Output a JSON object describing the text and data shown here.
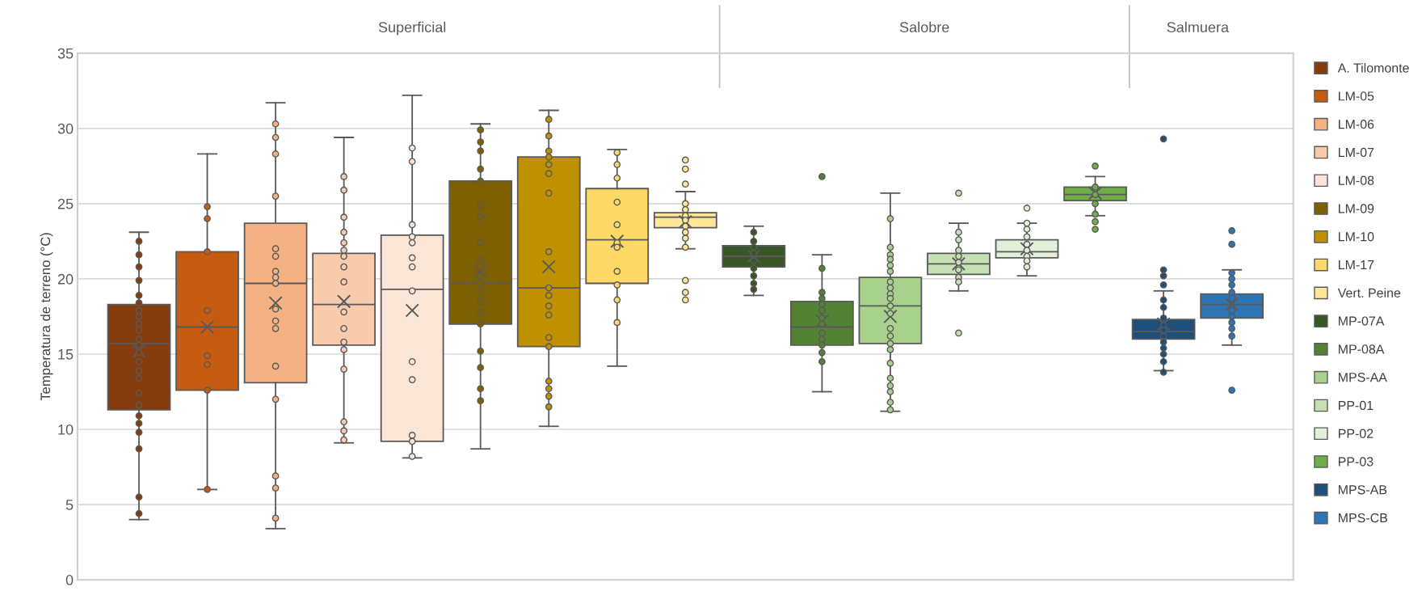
{
  "chart_data": {
    "type": "box",
    "ylabel": "Temperatura de terreno (°C)",
    "categories": [
      null
    ],
    "annotations": [
      "Superficial",
      "Salobre",
      "Salmuera"
    ],
    "ylim": [
      0,
      35
    ],
    "yticks": [
      0,
      5,
      10,
      15,
      20,
      25,
      30,
      35
    ],
    "grid": "y",
    "legend": "right",
    "marker": "circle",
    "tick_labels": "y",
    "series": [
      {
        "name": "A. Tilomonte",
        "color": "#843c0c",
        "boxes": [
          {
            "low": 4.0,
            "q1": 11.3,
            "median": 15.7,
            "q3": 18.3,
            "high": 23.1,
            "mean": 15.2,
            "outliers": [
              22.5,
              21.6,
              20.8,
              19.9,
              18.9,
              18.4,
              17.9,
              17.5,
              17.0,
              16.6,
              16.0,
              15.6,
              15.1,
              14.5,
              13.9,
              13.4,
              12.4,
              11.6,
              10.9,
              10.4,
              9.8,
              8.7,
              5.5,
              4.4
            ]
          }
        ]
      },
      {
        "name": "LM-05",
        "color": "#c55a11",
        "boxes": [
          {
            "low": 6.0,
            "q1": 12.6,
            "median": 16.8,
            "q3": 21.8,
            "high": 28.3,
            "mean": 16.8,
            "outliers": [
              24.8,
              24.0,
              21.8,
              17.9,
              14.9,
              14.3,
              12.6,
              6.0
            ]
          }
        ]
      },
      {
        "name": "LM-06",
        "color": "#f4b183",
        "boxes": [
          {
            "low": 3.4,
            "q1": 13.1,
            "median": 19.7,
            "q3": 23.7,
            "high": 31.7,
            "mean": 18.4,
            "outliers": [
              30.3,
              29.4,
              28.3,
              25.5,
              22.0,
              21.5,
              20.5,
              20.1,
              19.7,
              18.0,
              17.2,
              16.7,
              14.2,
              12.0,
              6.9,
              6.1,
              4.1
            ]
          }
        ]
      },
      {
        "name": "LM-07",
        "color": "#f8cbad",
        "boxes": [
          {
            "low": 9.1,
            "q1": 15.6,
            "median": 18.3,
            "q3": 21.7,
            "high": 29.4,
            "mean": 18.5,
            "outliers": [
              26.8,
              25.9,
              24.1,
              23.1,
              22.4,
              21.9,
              21.5,
              20.8,
              19.8,
              17.8,
              16.7,
              15.8,
              15.3,
              14.0,
              10.5,
              9.9,
              9.3
            ]
          }
        ]
      },
      {
        "name": "LM-08",
        "color": "#fbe5d6",
        "boxes": [
          {
            "low": 8.1,
            "q1": 9.2,
            "median": 19.3,
            "q3": 22.9,
            "high": 32.2,
            "mean": 17.9,
            "outliers": [
              28.7,
              27.8,
              23.6,
              22.8,
              22.4,
              21.4,
              20.8,
              19.2,
              14.5,
              13.3,
              9.6,
              9.2,
              8.2
            ]
          }
        ]
      },
      {
        "name": "LM-09",
        "color": "#7f6000",
        "boxes": [
          {
            "low": 8.7,
            "q1": 17.0,
            "median": 19.7,
            "q3": 26.5,
            "high": 30.3,
            "mean": 20.5,
            "outliers": [
              29.9,
              29.1,
              28.5,
              27.3,
              26.5,
              24.9,
              24.1,
              22.4,
              21.2,
              20.2,
              19.7,
              19.2,
              18.5,
              17.8,
              17.0,
              15.2,
              14.1,
              12.7,
              11.9
            ]
          }
        ]
      },
      {
        "name": "LM-10",
        "color": "#bf9000",
        "boxes": [
          {
            "low": 10.2,
            "q1": 15.5,
            "median": 19.4,
            "q3": 28.1,
            "high": 31.2,
            "mean": 20.8,
            "outliers": [
              30.6,
              29.5,
              28.5,
              28.1,
              27.6,
              27.0,
              25.7,
              21.8,
              19.4,
              18.9,
              18.2,
              17.6,
              16.1,
              15.5,
              13.2,
              12.7,
              12.2,
              11.5
            ]
          }
        ]
      },
      {
        "name": "LM-17",
        "color": "#ffd966",
        "boxes": [
          {
            "low": 14.2,
            "q1": 19.7,
            "median": 22.6,
            "q3": 26.0,
            "high": 28.6,
            "mean": 22.5,
            "outliers": [
              28.4,
              27.6,
              26.7,
              25.1,
              23.6,
              22.4,
              22.1,
              20.5,
              19.6,
              18.6,
              17.1
            ]
          }
        ]
      },
      {
        "name": "Vert. Peine",
        "color": "#ffe699",
        "boxes": [
          {
            "low": 22.0,
            "q1": 23.4,
            "median": 24.1,
            "q3": 24.4,
            "high": 25.8,
            "mean": 23.8,
            "outliers": [
              27.9,
              27.3,
              26.3,
              25.0,
              24.6,
              24.2,
              23.9,
              23.5,
              23.1,
              22.7,
              22.1,
              19.9,
              19.1,
              18.6
            ]
          }
        ]
      },
      {
        "name": "MP-07A",
        "color": "#375623",
        "boxes": [
          {
            "low": 18.9,
            "q1": 20.8,
            "median": 21.5,
            "q3": 22.2,
            "high": 23.5,
            "mean": 21.5,
            "outliers": [
              23.1,
              22.5,
              22.1,
              21.7,
              21.2,
              20.7,
              20.2,
              19.7,
              19.3
            ]
          }
        ]
      },
      {
        "name": "MP-08A",
        "color": "#548235",
        "boxes": [
          {
            "low": 12.5,
            "q1": 15.6,
            "median": 16.8,
            "q3": 18.5,
            "high": 21.6,
            "mean": 17.2,
            "outliers": [
              26.8,
              20.7,
              19.1,
              18.7,
              18.3,
              17.9,
              17.4,
              17.0,
              16.4,
              16.0,
              15.6,
              15.1,
              14.5
            ]
          }
        ]
      },
      {
        "name": "MPS-AA",
        "color": "#a9d18e",
        "boxes": [
          {
            "low": 11.2,
            "q1": 15.7,
            "median": 18.2,
            "q3": 20.1,
            "high": 25.7,
            "mean": 17.5,
            "outliers": [
              24.0,
              22.1,
              21.6,
              21.3,
              20.9,
              20.5,
              19.8,
              19.4,
              19.0,
              18.7,
              18.2,
              17.7,
              16.7,
              16.2,
              15.7,
              15.3,
              14.4,
              13.4,
              12.9,
              12.5,
              11.8,
              11.3
            ]
          }
        ]
      },
      {
        "name": "PP-01",
        "color": "#c5e0b4",
        "boxes": [
          {
            "low": 19.2,
            "q1": 20.3,
            "median": 21.0,
            "q3": 21.7,
            "high": 23.7,
            "mean": 21.0,
            "outliers": [
              25.7,
              23.1,
              22.6,
              21.9,
              21.5,
              21.1,
              20.6,
              20.1,
              19.8,
              16.4
            ]
          }
        ]
      },
      {
        "name": "PP-02",
        "color": "#e2f0d9",
        "boxes": [
          {
            "low": 20.2,
            "q1": 21.4,
            "median": 21.8,
            "q3": 22.6,
            "high": 23.7,
            "mean": 22.0,
            "outliers": [
              24.7,
              23.7,
              23.3,
              22.8,
              22.3,
              21.9,
              21.5,
              21.2,
              20.8
            ]
          }
        ]
      },
      {
        "name": "PP-03",
        "color": "#70ad47",
        "boxes": [
          {
            "low": 24.2,
            "q1": 25.2,
            "median": 25.6,
            "q3": 26.1,
            "high": 26.8,
            "mean": 25.7,
            "outliers": [
              27.5,
              26.1,
              25.6,
              25.0,
              24.3,
              23.8,
              23.3
            ]
          }
        ]
      },
      {
        "name": "MPS-AB",
        "color": "#1f4e79",
        "boxes": [
          {
            "low": 13.9,
            "q1": 16.0,
            "median": 16.5,
            "q3": 17.3,
            "high": 19.2,
            "mean": 17.0,
            "outliers": [
              29.3,
              20.6,
              20.2,
              19.6,
              18.6,
              18.1,
              17.4,
              16.9,
              16.6,
              16.2,
              15.8,
              15.4,
              15.0,
              14.5,
              13.8
            ]
          }
        ]
      },
      {
        "name": "MPS-CB",
        "color": "#2e75b6",
        "boxes": [
          {
            "low": 15.6,
            "q1": 17.4,
            "median": 18.3,
            "q3": 19.0,
            "high": 20.6,
            "mean": 18.3,
            "outliers": [
              23.2,
              22.3,
              20.4,
              20.0,
              19.6,
              19.1,
              18.7,
              17.9,
              17.5,
              17.1,
              16.7,
              16.2,
              12.6
            ]
          }
        ]
      }
    ]
  }
}
